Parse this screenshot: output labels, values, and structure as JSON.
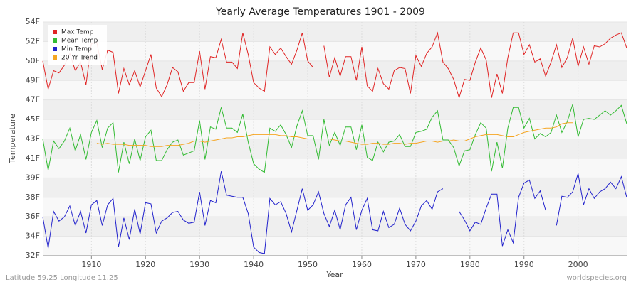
{
  "chart_data": {
    "type": "line",
    "title": "Yearly Average Temperatures 1901 - 2009",
    "x_label": "Year",
    "y_label": "Temperature",
    "footer_left": "Latitude 59.25 Longitude 11.25",
    "footer_right": "worldspecies.org",
    "legend": "top-left",
    "grid": true,
    "xlim": [
      1901,
      2009
    ],
    "xticks": [
      1910,
      1920,
      1930,
      1940,
      1950,
      1960,
      1970,
      1980,
      1990,
      2000
    ],
    "ylim": [
      32,
      53.6
    ],
    "yticks": [
      {
        "value": 32,
        "label": "32F"
      },
      {
        "value": 33.8,
        "label": "34F"
      },
      {
        "value": 35.6,
        "label": "36F"
      },
      {
        "value": 37.4,
        "label": "38F"
      },
      {
        "value": 39.2,
        "label": "39F"
      },
      {
        "value": 41,
        "label": "41F"
      },
      {
        "value": 42.8,
        "label": "43F"
      },
      {
        "value": 44.6,
        "label": "45F"
      },
      {
        "value": 46.4,
        "label": "47F"
      },
      {
        "value": 48.2,
        "label": "49F"
      },
      {
        "value": 50,
        "label": "50F"
      },
      {
        "value": 51.8,
        "label": "52F"
      },
      {
        "value": 53.6,
        "label": "54F"
      }
    ],
    "x": [
      1901,
      1902,
      1903,
      1904,
      1905,
      1906,
      1907,
      1908,
      1909,
      1910,
      1911,
      1912,
      1913,
      1914,
      1915,
      1916,
      1917,
      1918,
      1919,
      1920,
      1921,
      1922,
      1923,
      1924,
      1925,
      1926,
      1927,
      1928,
      1929,
      1930,
      1931,
      1932,
      1933,
      1934,
      1935,
      1936,
      1937,
      1938,
      1939,
      1940,
      1941,
      1942,
      1943,
      1944,
      1945,
      1946,
      1947,
      1948,
      1949,
      1950,
      1951,
      1952,
      1953,
      1954,
      1955,
      1956,
      1957,
      1958,
      1959,
      1960,
      1961,
      1962,
      1963,
      1964,
      1965,
      1966,
      1967,
      1968,
      1969,
      1970,
      1971,
      1972,
      1973,
      1974,
      1975,
      1976,
      1977,
      1978,
      1979,
      1980,
      1981,
      1982,
      1983,
      1984,
      1985,
      1986,
      1987,
      1988,
      1989,
      1990,
      1991,
      1992,
      1993,
      1994,
      1995,
      1996,
      1997,
      1998,
      1999,
      2000,
      2001,
      2002,
      2003,
      2004,
      2005,
      2006,
      2007,
      2008,
      2009
    ],
    "series": [
      {
        "name": "Max Temp",
        "color": "#e02424",
        "values": [
          50.0,
          47.4,
          49.1,
          48.9,
          49.6,
          50.7,
          49.1,
          49.9,
          47.8,
          51.6,
          51.7,
          49.2,
          51.0,
          50.8,
          47.0,
          49.3,
          47.8,
          49.1,
          47.6,
          49.1,
          50.6,
          47.5,
          46.7,
          47.8,
          49.4,
          49.0,
          47.2,
          48.0,
          48.0,
          50.9,
          47.4,
          50.4,
          50.3,
          52.0,
          49.9,
          49.9,
          49.3,
          52.6,
          50.6,
          48.0,
          47.5,
          47.2,
          51.3,
          50.6,
          51.2,
          50.4,
          49.7,
          51.0,
          52.6,
          50.0,
          49.4,
          null,
          51.4,
          48.5,
          50.3,
          48.6,
          50.4,
          50.4,
          48.2,
          51.3,
          47.7,
          47.2,
          49.3,
          47.9,
          47.4,
          49.1,
          49.4,
          49.3,
          47.0,
          50.5,
          49.5,
          50.7,
          51.3,
          52.6,
          49.9,
          49.3,
          48.3,
          46.6,
          48.3,
          48.2,
          49.9,
          51.2,
          50.1,
          46.6,
          48.8,
          47.0,
          50.3,
          52.6,
          52.6,
          50.6,
          51.5,
          49.9,
          50.2,
          48.6,
          49.9,
          51.5,
          49.4,
          50.3,
          52.1,
          49.5,
          51.3,
          49.7,
          51.4,
          51.3,
          51.6,
          52.1,
          52.4,
          52.6,
          51.2
        ]
      },
      {
        "name": "Mean Temp",
        "color": "#33bb33",
        "values": [
          42.8,
          39.9,
          42.6,
          41.9,
          42.6,
          43.8,
          41.7,
          43.2,
          40.9,
          43.4,
          44.5,
          42.0,
          43.8,
          44.3,
          39.7,
          42.5,
          40.5,
          42.8,
          40.8,
          43.0,
          43.6,
          40.8,
          40.8,
          41.8,
          42.5,
          42.7,
          41.3,
          41.5,
          41.7,
          44.5,
          40.9,
          43.9,
          43.7,
          45.7,
          43.8,
          43.8,
          43.4,
          45.1,
          42.5,
          40.5,
          40.0,
          39.7,
          43.8,
          43.5,
          44.1,
          43.2,
          42.0,
          44.0,
          45.4,
          43.1,
          43.1,
          40.9,
          44.6,
          42.2,
          43.4,
          42.2,
          43.9,
          43.9,
          41.8,
          44.1,
          41.1,
          40.8,
          42.5,
          41.6,
          42.5,
          42.6,
          43.2,
          42.1,
          42.1,
          43.4,
          43.5,
          43.7,
          44.8,
          45.4,
          42.7,
          42.7,
          42.0,
          40.3,
          41.7,
          41.8,
          43.2,
          44.3,
          43.8,
          39.8,
          42.5,
          40.1,
          43.8,
          45.7,
          45.7,
          43.8,
          44.7,
          42.8,
          43.3,
          43.0,
          43.4,
          45.0,
          43.4,
          44.4,
          46.0,
          43.0,
          44.6,
          44.7,
          44.6,
          45.0,
          45.4,
          45.0,
          45.4,
          45.9,
          44.2
        ]
      },
      {
        "name": "Min Temp",
        "color": "#2222cc",
        "values": [
          35.6,
          32.7,
          36.1,
          35.2,
          35.6,
          36.6,
          34.8,
          36.1,
          34.1,
          36.7,
          37.1,
          34.8,
          36.7,
          37.3,
          32.8,
          35.5,
          33.5,
          36.3,
          34.0,
          36.9,
          36.8,
          34.1,
          35.2,
          35.5,
          36.0,
          36.1,
          35.3,
          35.0,
          35.1,
          37.9,
          34.8,
          37.1,
          36.9,
          39.8,
          37.6,
          37.5,
          37.4,
          37.4,
          35.9,
          32.8,
          32.3,
          32.2,
          37.3,
          36.7,
          37.0,
          35.9,
          34.2,
          36.2,
          38.2,
          36.2,
          36.7,
          37.9,
          35.9,
          34.7,
          36.2,
          34.4,
          36.7,
          37.4,
          34.4,
          36.2,
          37.3,
          34.4,
          34.3,
          36.1,
          34.6,
          34.9,
          36.4,
          34.9,
          34.3,
          35.2,
          36.6,
          37.1,
          36.3,
          37.9,
          38.2,
          null,
          null,
          36.1,
          35.3,
          34.3,
          35.1,
          34.9,
          36.4,
          37.7,
          37.7,
          32.9,
          34.4,
          33.2,
          37.4,
          38.7,
          39.0,
          37.3,
          38.0,
          36.2,
          null,
          34.8,
          37.5,
          37.4,
          37.9,
          39.6,
          36.7,
          38.2,
          37.3,
          37.9,
          38.2,
          38.8,
          38.2,
          39.3,
          37.4
        ]
      },
      {
        "name": "20 Yr Trend",
        "color": "#f5a623",
        "values": [
          null,
          null,
          null,
          null,
          null,
          null,
          null,
          null,
          null,
          null,
          42.4,
          42.3,
          42.4,
          42.3,
          42.3,
          42.3,
          42.2,
          42.2,
          42.2,
          42.2,
          42.1,
          42.1,
          42.1,
          42.2,
          42.2,
          42.2,
          42.3,
          42.4,
          42.6,
          42.6,
          42.5,
          42.6,
          42.7,
          42.8,
          42.9,
          42.9,
          43.0,
          43.0,
          43.1,
          43.2,
          43.2,
          43.2,
          43.2,
          43.2,
          43.1,
          43.1,
          43.0,
          43.0,
          42.9,
          42.8,
          42.8,
          42.8,
          42.8,
          42.8,
          42.7,
          42.6,
          42.6,
          42.5,
          42.4,
          42.3,
          42.3,
          42.4,
          42.4,
          42.3,
          42.3,
          42.4,
          42.4,
          42.3,
          42.4,
          42.4,
          42.5,
          42.6,
          42.6,
          42.5,
          42.6,
          42.6,
          42.7,
          42.6,
          42.6,
          42.8,
          43.0,
          43.1,
          43.2,
          43.2,
          43.2,
          43.1,
          43.0,
          43.0,
          43.2,
          43.4,
          43.5,
          43.6,
          43.7,
          43.8,
          43.8,
          43.9,
          44.2,
          44.3,
          44.3,
          null,
          null,
          null,
          null,
          null,
          null,
          null,
          null,
          null,
          null
        ]
      }
    ]
  }
}
